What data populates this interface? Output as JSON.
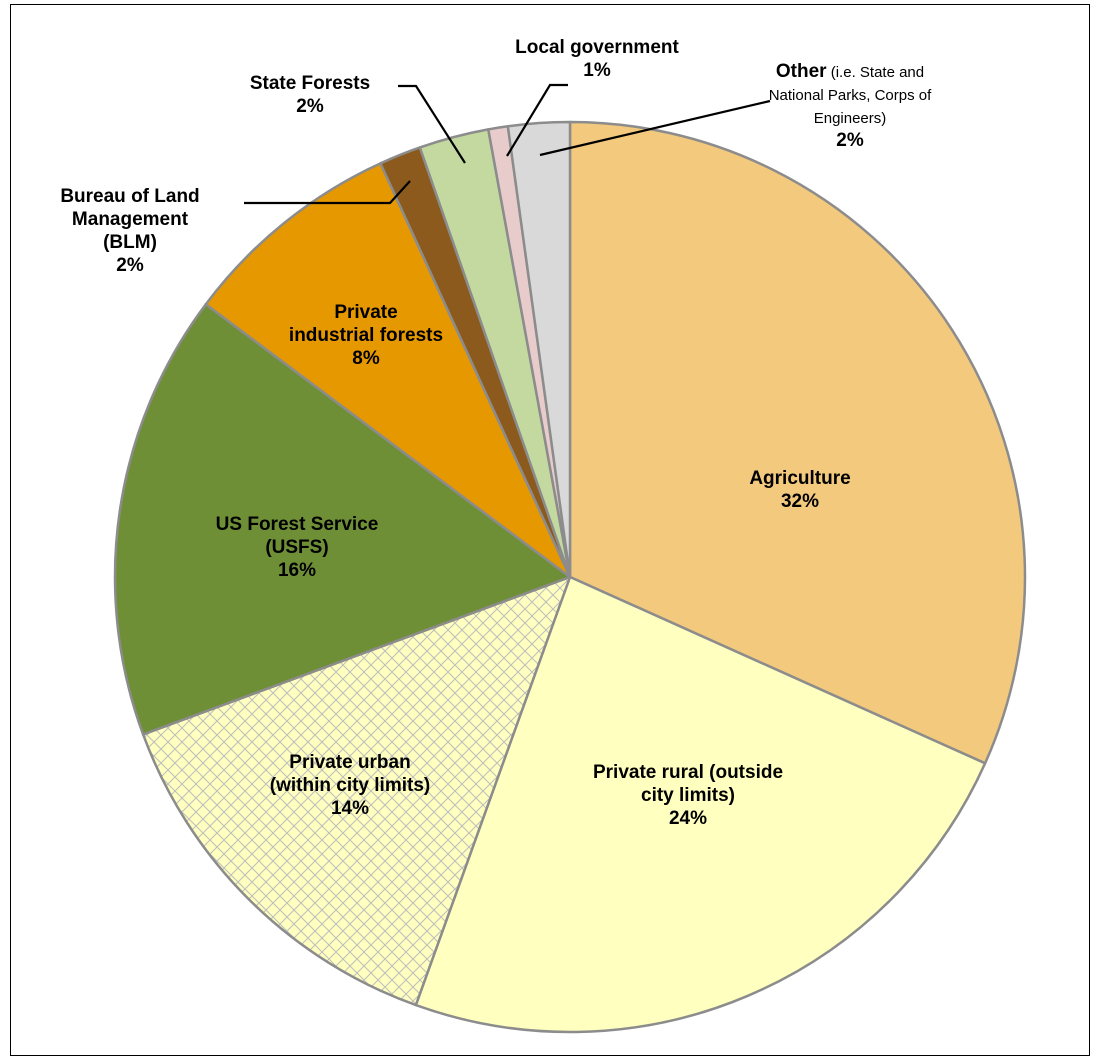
{
  "chart_data": {
    "type": "pie",
    "start": "12 o'clock, clockwise",
    "slices": [
      {
        "key": "agriculture",
        "value": 32,
        "color": "#f3c97d",
        "pattern": "none",
        "label_lines": [
          "Agriculture",
          "32%"
        ]
      },
      {
        "key": "private-rural",
        "value": 24,
        "color": "#ffffc0",
        "pattern": "none",
        "label_lines": [
          "Private rural (outside",
          "city limits)",
          "24%"
        ]
      },
      {
        "key": "private-urban",
        "value": 14,
        "color": "#ffffc0",
        "pattern": "crosshatch",
        "label_lines": [
          "Private urban",
          "(within city limits)",
          "14%"
        ]
      },
      {
        "key": "usfs",
        "value": 16,
        "color": "#6f8f37",
        "pattern": "none",
        "label_lines": [
          "US Forest Service",
          "(USFS)",
          "16%"
        ]
      },
      {
        "key": "private-industrial",
        "value": 8,
        "color": "#e59800",
        "pattern": "none",
        "label_lines": [
          "Private",
          "industrial forests",
          "8%"
        ]
      },
      {
        "key": "blm",
        "value": 1.5,
        "color": "#8b5a1c",
        "pattern": "none",
        "label_lines": [
          "Bureau of Land",
          "Management",
          "(BLM)",
          "2%"
        ]
      },
      {
        "key": "state-forests",
        "value": 2.5,
        "color": "#c4d9a0",
        "pattern": "none",
        "label_lines": [
          "State Forests",
          "2%"
        ]
      },
      {
        "key": "local-government",
        "value": 0.7,
        "color": "#e8cccc",
        "pattern": "none",
        "label_lines": [
          "Local government",
          "1%"
        ]
      },
      {
        "key": "other",
        "value": 2.2,
        "color": "#d9d9d9",
        "pattern": "none",
        "label_lines": [
          "Other",
          "(i.e. State and",
          "National Parks, Corps of",
          "Engineers)",
          "2%"
        ]
      }
    ]
  }
}
